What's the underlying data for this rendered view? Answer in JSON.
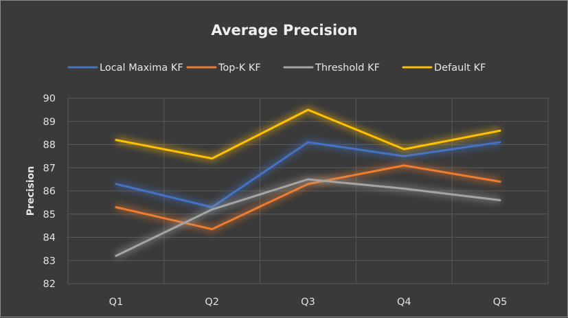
{
  "chart_data": {
    "type": "line",
    "title": "Average Precision",
    "xlabel": "",
    "ylabel": "Precision",
    "ylim": [
      82,
      90
    ],
    "yticks": [
      "82",
      "83",
      "84",
      "85",
      "86",
      "87",
      "88",
      "89",
      "90"
    ],
    "categories": [
      "Q1",
      "Q2",
      "Q3",
      "Q4",
      "Q5"
    ],
    "grid": true,
    "legend_position": "top",
    "series": [
      {
        "name": "Local Maxima KF",
        "color": "#4472c4",
        "values": [
          86.3,
          85.3,
          88.1,
          87.5,
          88.1
        ]
      },
      {
        "name": "Top-K KF",
        "color": "#ed7d31",
        "values": [
          85.3,
          84.35,
          86.3,
          87.1,
          86.4
        ]
      },
      {
        "name": "Threshold KF",
        "color": "#a5a5a5",
        "values": [
          83.2,
          85.2,
          86.5,
          86.1,
          85.6
        ]
      },
      {
        "name": "Default KF",
        "color": "#ffc000",
        "values": [
          88.2,
          87.4,
          89.5,
          87.8,
          88.6
        ]
      }
    ]
  }
}
